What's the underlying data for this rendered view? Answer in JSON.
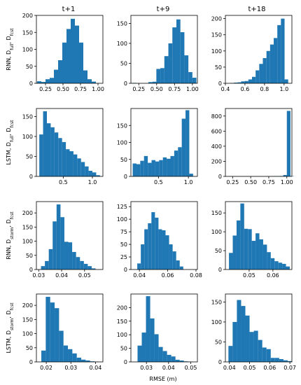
{
  "figure": {
    "column_titles": [
      "t+1",
      "t+9",
      "t+18"
    ],
    "row_labels": [
      {
        "main": "RNN, ",
        "parts": [
          [
            "D",
            "full"
          ],
          [
            "D",
            "fcst"
          ]
        ]
      },
      {
        "main": "LSTM, ",
        "parts": [
          [
            "D",
            "full"
          ],
          [
            "D",
            "fcst"
          ]
        ]
      },
      {
        "main": "RNN, ",
        "parts": [
          [
            "D",
            "storm"
          ],
          [
            "D",
            "fcst"
          ]
        ]
      },
      {
        "main": "LSTM, ",
        "parts": [
          [
            "D",
            "storm"
          ],
          [
            "D",
            "fcst"
          ]
        ]
      }
    ],
    "xlabel": "RMSE (m)",
    "bar_color": "#1f77b4"
  },
  "chart_data": [
    {
      "type": "bar",
      "row": 0,
      "col": 0,
      "bin_start": 0.13,
      "bin_width": 0.06,
      "values": [
        6,
        4,
        12,
        16,
        40,
        68,
        120,
        160,
        190,
        170,
        120,
        38,
        12,
        5
      ],
      "xlim": [
        0.12,
        1.07
      ],
      "ylim": [
        0,
        200
      ],
      "xticks": [
        {
          "v": 0.25,
          "label": "0.25"
        },
        {
          "v": 0.5,
          "label": "0.50"
        },
        {
          "v": 0.75,
          "label": "0.75"
        },
        {
          "v": 1.0,
          "label": "1.00"
        }
      ],
      "yticks": [
        {
          "v": 0,
          "label": "0"
        },
        {
          "v": 50,
          "label": "50"
        },
        {
          "v": 100,
          "label": "100"
        },
        {
          "v": 150,
          "label": "150"
        },
        {
          "v": 200,
          "label": "200"
        }
      ]
    },
    {
      "type": "bar",
      "row": 0,
      "col": 1,
      "bin_start": 0.16,
      "bin_width": 0.056,
      "values": [
        1,
        0,
        0,
        0,
        3,
        4,
        36,
        38,
        68,
        100,
        140,
        160,
        128,
        70,
        28,
        14
      ],
      "xlim": [
        0.14,
        1.07
      ],
      "ylim": [
        0,
        170
      ],
      "xticks": [
        {
          "v": 0.25,
          "label": "0.25"
        },
        {
          "v": 0.5,
          "label": "0.50"
        },
        {
          "v": 0.75,
          "label": "0.75"
        },
        {
          "v": 1.0,
          "label": "1.00"
        }
      ],
      "yticks": [
        {
          "v": 0,
          "label": "0"
        },
        {
          "v": 50,
          "label": "50"
        },
        {
          "v": 100,
          "label": "100"
        },
        {
          "v": 150,
          "label": "150"
        }
      ]
    },
    {
      "type": "bar",
      "row": 0,
      "col": 2,
      "bin_start": 0.45,
      "bin_width": 0.037,
      "values": [
        1,
        2,
        3,
        6,
        7,
        12,
        20,
        40,
        60,
        78,
        100,
        120,
        140,
        180,
        200,
        12
      ],
      "xlim": [
        0.4,
        1.08
      ],
      "ylim": [
        0,
        210
      ],
      "xticks": [
        {
          "v": 0.4,
          "label": "0.4"
        },
        {
          "v": 0.6,
          "label": "0.6"
        },
        {
          "v": 0.8,
          "label": "0.8"
        },
        {
          "v": 1.0,
          "label": "1.0"
        }
      ],
      "yticks": [
        {
          "v": 0,
          "label": "0"
        },
        {
          "v": 50,
          "label": "50"
        },
        {
          "v": 100,
          "label": "100"
        },
        {
          "v": 150,
          "label": "150"
        },
        {
          "v": 200,
          "label": "200"
        }
      ]
    },
    {
      "type": "bar",
      "row": 1,
      "col": 0,
      "bin_start": 0.09,
      "bin_width": 0.065,
      "values": [
        105,
        163,
        133,
        123,
        110,
        96,
        86,
        68,
        63,
        55,
        45,
        36,
        25,
        14,
        10,
        3
      ],
      "xlim": [
        0.04,
        1.18
      ],
      "ylim": [
        0,
        170
      ],
      "xticks": [
        {
          "v": 0.5,
          "label": "0.5"
        },
        {
          "v": 1.0,
          "label": "1.0"
        }
      ],
      "yticks": [
        {
          "v": 0,
          "label": "0"
        },
        {
          "v": 50,
          "label": "50"
        },
        {
          "v": 100,
          "label": "100"
        },
        {
          "v": 150,
          "label": "150"
        }
      ]
    },
    {
      "type": "bar",
      "row": 1,
      "col": 1,
      "bin_start": 0.07,
      "bin_width": 0.063,
      "values": [
        38,
        36,
        46,
        60,
        40,
        48,
        44,
        48,
        56,
        52,
        60,
        76,
        86,
        170,
        195,
        8
      ],
      "xlim": [
        0.04,
        1.15
      ],
      "ylim": [
        0,
        200
      ],
      "xticks": [
        {
          "v": 0.5,
          "label": "0.5"
        },
        {
          "v": 1.0,
          "label": "1.0"
        }
      ],
      "yticks": [
        {
          "v": 0,
          "label": "0"
        },
        {
          "v": 50,
          "label": "50"
        },
        {
          "v": 100,
          "label": "100"
        },
        {
          "v": 150,
          "label": "150"
        }
      ]
    },
    {
      "type": "bar",
      "row": 1,
      "col": 2,
      "bin_start": 0.15,
      "bin_width": 0.05,
      "values": [
        2,
        2,
        2,
        2,
        2,
        2,
        2,
        2,
        2,
        2,
        2,
        2,
        3,
        4,
        4,
        5,
        18,
        868,
        4
      ],
      "xlim": [
        0.15,
        1.07
      ],
      "ylim": [
        0,
        900
      ],
      "xticks": [
        {
          "v": 0.25,
          "label": "0.25"
        },
        {
          "v": 0.5,
          "label": "0.50"
        },
        {
          "v": 0.75,
          "label": "0.75"
        },
        {
          "v": 1.0,
          "label": "1.00"
        }
      ],
      "yticks": [
        {
          "v": 0,
          "label": "0"
        },
        {
          "v": 200,
          "label": "200"
        },
        {
          "v": 400,
          "label": "400"
        },
        {
          "v": 600,
          "label": "600"
        },
        {
          "v": 800,
          "label": "800"
        }
      ]
    },
    {
      "type": "bar",
      "row": 2,
      "col": 0,
      "bin_start": 0.031,
      "bin_width": 0.0017,
      "values": [
        12,
        30,
        72,
        170,
        230,
        185,
        98,
        96,
        62,
        44,
        30,
        20,
        12,
        4
      ],
      "xlim": [
        0.029,
        0.058
      ],
      "ylim": [
        0,
        240
      ],
      "xticks": [
        {
          "v": 0.03,
          "label": "0.03"
        },
        {
          "v": 0.04,
          "label": "0.04"
        },
        {
          "v": 0.05,
          "label": "0.05"
        }
      ],
      "yticks": [
        {
          "v": 0,
          "label": "0"
        },
        {
          "v": 50,
          "label": "50"
        },
        {
          "v": 100,
          "label": "100"
        },
        {
          "v": 150,
          "label": "150"
        },
        {
          "v": 200,
          "label": "200"
        }
      ]
    },
    {
      "type": "bar",
      "row": 2,
      "col": 1,
      "bin_start": 0.0385,
      "bin_width": 0.0025,
      "values": [
        12,
        50,
        80,
        92,
        114,
        103,
        80,
        78,
        68,
        50,
        36,
        18,
        6
      ],
      "xlim": [
        0.034,
        0.081
      ],
      "ylim": [
        0,
        135
      ],
      "xticks": [
        {
          "v": 0.04,
          "label": "0.04"
        },
        {
          "v": 0.06,
          "label": "0.06"
        },
        {
          "v": 0.08,
          "label": "0.08"
        }
      ],
      "yticks": [
        {
          "v": 0,
          "label": "0"
        },
        {
          "v": 25,
          "label": "25"
        },
        {
          "v": 50,
          "label": "50"
        },
        {
          "v": 75,
          "label": "75"
        },
        {
          "v": 100,
          "label": "100"
        },
        {
          "v": 125,
          "label": "125"
        }
      ]
    },
    {
      "type": "bar",
      "row": 2,
      "col": 2,
      "bin_start": 0.0415,
      "bin_width": 0.0016,
      "values": [
        44,
        90,
        130,
        175,
        108,
        107,
        76,
        96,
        80,
        66,
        46,
        30,
        22,
        18,
        15,
        8
      ],
      "xlim": [
        0.04,
        0.068
      ],
      "ylim": [
        0,
        180
      ],
      "xticks": [
        {
          "v": 0.05,
          "label": "0.05"
        },
        {
          "v": 0.06,
          "label": "0.06"
        }
      ],
      "yticks": [
        {
          "v": 0,
          "label": "0"
        },
        {
          "v": 50,
          "label": "50"
        },
        {
          "v": 100,
          "label": "100"
        },
        {
          "v": 150,
          "label": "150"
        }
      ]
    },
    {
      "type": "bar",
      "row": 3,
      "col": 0,
      "bin_start": 0.018,
      "bin_width": 0.0018,
      "values": [
        40,
        230,
        210,
        190,
        110,
        58,
        45,
        30,
        15,
        8,
        5,
        2,
        1
      ],
      "xlim": [
        0.016,
        0.043
      ],
      "ylim": [
        0,
        240
      ],
      "xticks": [
        {
          "v": 0.02,
          "label": "0.02"
        },
        {
          "v": 0.03,
          "label": "0.03"
        },
        {
          "v": 0.04,
          "label": "0.04"
        }
      ],
      "yticks": [
        {
          "v": 0,
          "label": "0"
        },
        {
          "v": 50,
          "label": "50"
        },
        {
          "v": 100,
          "label": "100"
        },
        {
          "v": 150,
          "label": "150"
        },
        {
          "v": 200,
          "label": "200"
        }
      ]
    },
    {
      "type": "bar",
      "row": 3,
      "col": 1,
      "bin_start": 0.026,
      "bin_width": 0.0019,
      "values": [
        60,
        108,
        242,
        160,
        102,
        55,
        40,
        26,
        20,
        8,
        5,
        2,
        1
      ],
      "xlim": [
        0.023,
        0.053
      ],
      "ylim": [
        0,
        250
      ],
      "xticks": [
        {
          "v": 0.03,
          "label": "0.03"
        },
        {
          "v": 0.04,
          "label": "0.04"
        },
        {
          "v": 0.05,
          "label": "0.05"
        }
      ],
      "yticks": [
        {
          "v": 0,
          "label": "0"
        },
        {
          "v": 50,
          "label": "50"
        },
        {
          "v": 100,
          "label": "100"
        },
        {
          "v": 150,
          "label": "150"
        },
        {
          "v": 200,
          "label": "200"
        }
      ]
    },
    {
      "type": "bar",
      "row": 3,
      "col": 2,
      "bin_start": 0.0395,
      "bin_width": 0.0021,
      "values": [
        40,
        100,
        155,
        140,
        116,
        75,
        78,
        55,
        36,
        32,
        10,
        10,
        7,
        4,
        2
      ],
      "xlim": [
        0.038,
        0.071
      ],
      "ylim": [
        0,
        170
      ],
      "xticks": [
        {
          "v": 0.04,
          "label": "0.04"
        },
        {
          "v": 0.05,
          "label": "0.05"
        },
        {
          "v": 0.06,
          "label": "0.06"
        },
        {
          "v": 0.07,
          "label": "0.07"
        }
      ],
      "yticks": [
        {
          "v": 0,
          "label": "0"
        },
        {
          "v": 50,
          "label": "50"
        },
        {
          "v": 100,
          "label": "100"
        },
        {
          "v": 150,
          "label": "150"
        }
      ]
    }
  ]
}
